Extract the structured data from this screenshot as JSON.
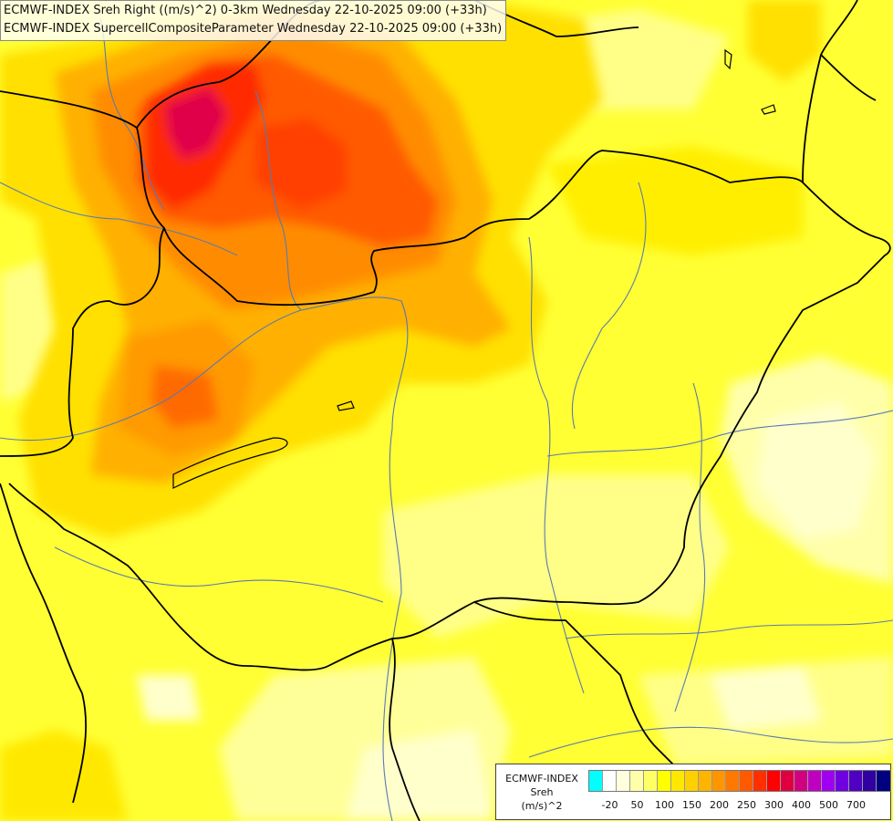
{
  "header": {
    "line1": "ECMWF-INDEX Sreh Right ((m/s)^2) 0-3km Wednesday 22-10-2025 09:00 (+33h)",
    "line2": "ECMWF-INDEX SupercellCompositeParameter Wednesday 22-10-2025 09:00 (+33h)"
  },
  "legend": {
    "title1": "ECMWF-INDEX",
    "title2": "Sreh",
    "units": "(m/s)^2",
    "colors": [
      "#00ffff",
      "#ffffff",
      "#ffffdd",
      "#ffffaa",
      "#ffff66",
      "#ffff00",
      "#ffe800",
      "#ffd000",
      "#ffb400",
      "#ff9600",
      "#ff7800",
      "#ff5a00",
      "#ff3000",
      "#ff0000",
      "#e00040",
      "#d00080",
      "#c000c0",
      "#a000f0",
      "#7000e0",
      "#5000c0",
      "#3000a0",
      "#000080"
    ],
    "ticks": [
      {
        "label": "-20",
        "index": 1
      },
      {
        "label": "50",
        "index": 3
      },
      {
        "label": "100",
        "index": 5
      },
      {
        "label": "150",
        "index": 7
      },
      {
        "label": "200",
        "index": 9
      },
      {
        "label": "250",
        "index": 11
      },
      {
        "label": "300",
        "index": 13
      },
      {
        "label": "400",
        "index": 15
      },
      {
        "label": "500",
        "index": 17
      },
      {
        "label": "700",
        "index": 19
      }
    ]
  }
}
